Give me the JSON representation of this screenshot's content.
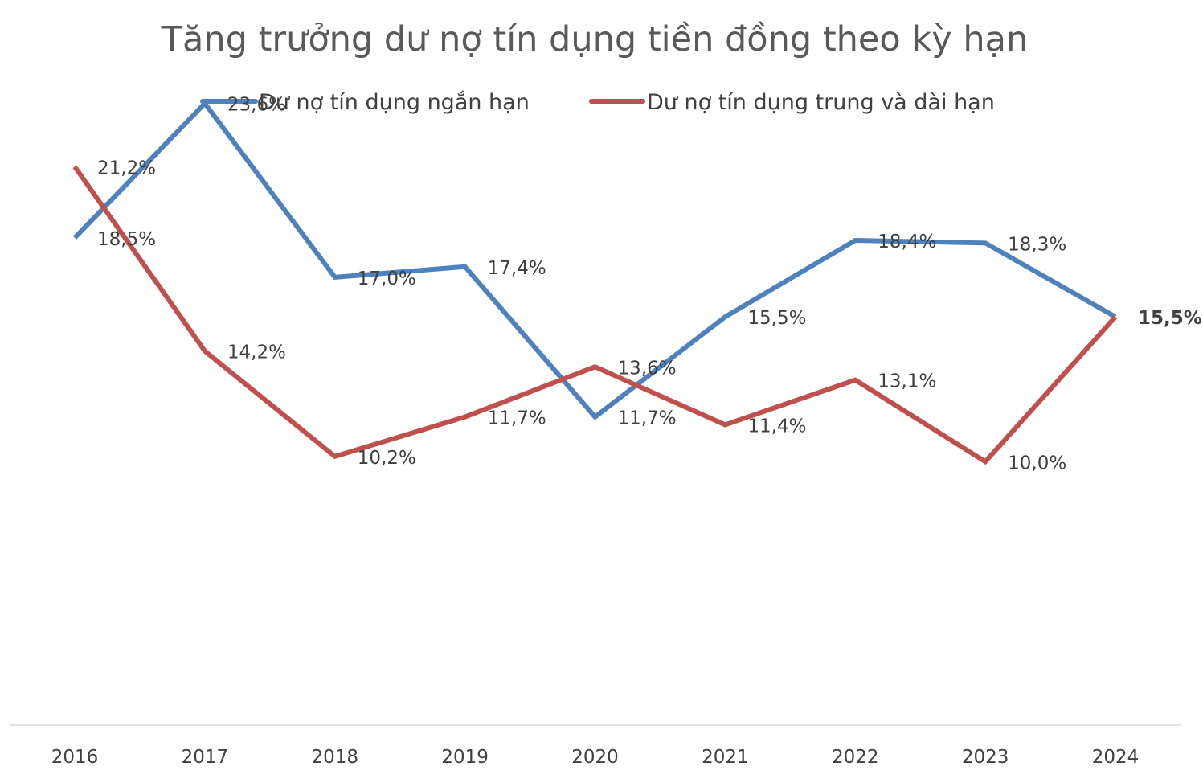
{
  "chart_data": {
    "type": "line",
    "title": "Tăng trưởng dư nợ tín dụng tiền đồng theo kỳ hạn",
    "xlabel": "",
    "ylabel": "",
    "categories": [
      "2016",
      "2017",
      "2018",
      "2019",
      "2020",
      "2021",
      "2022",
      "2023",
      "2024"
    ],
    "series": [
      {
        "name": "Dư nợ tín dụng ngắn hạn",
        "color": "#4f81bd",
        "values": [
          18.5,
          23.6,
          17.0,
          17.4,
          11.7,
          15.5,
          18.4,
          18.3,
          15.5
        ],
        "labels": [
          "18,5%",
          "23,6%",
          "17,0%",
          "17,4%",
          "11,7%",
          "15,5%",
          "18,4%",
          "18,3%",
          "15,5%"
        ]
      },
      {
        "name": "Dư nợ tín dụng trung và dài hạn",
        "color": "#c0504d",
        "values": [
          21.2,
          14.2,
          10.2,
          11.7,
          13.6,
          11.4,
          13.1,
          10.0,
          15.5
        ],
        "labels": [
          "21,2%",
          "14,2%",
          "10,2%",
          "11,7%",
          "13,6%",
          "11,4%",
          "13,1%",
          "10,0%",
          ""
        ]
      }
    ],
    "ylim": [
      0,
      26
    ],
    "grid": false,
    "legend_position": "top"
  }
}
